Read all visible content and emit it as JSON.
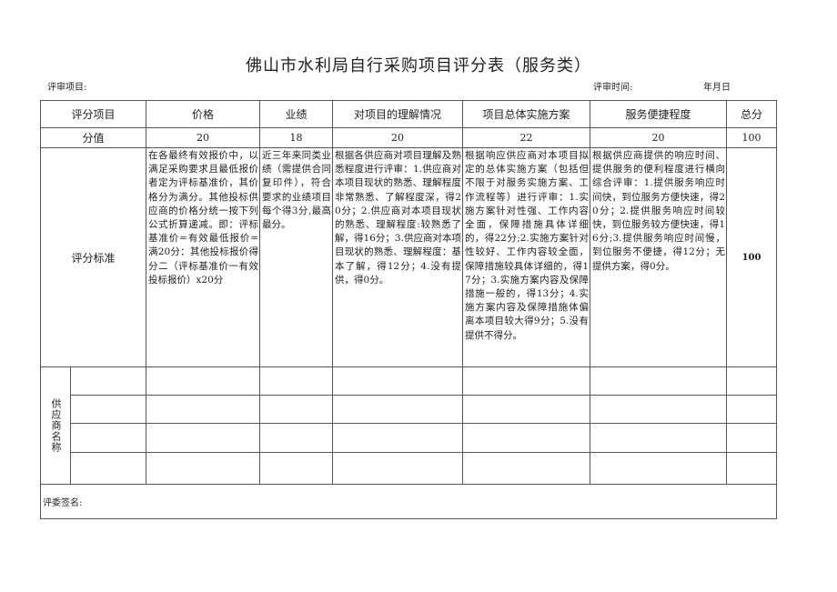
{
  "title": "佛山市水利局自行采购项目评分表（服务类）",
  "meta": {
    "project_label": "评审项目:",
    "time_label": "评审时间:",
    "date_label": "年月日"
  },
  "table": {
    "headers": [
      "评分项目",
      "价格",
      "业绩",
      "对项目的理解情况",
      "项目总体实施方案",
      "服务便捷程度",
      "总分"
    ],
    "score_label": "分值",
    "scores": [
      "20",
      "18",
      "20",
      "22",
      "20",
      "100"
    ],
    "criteria_label": "评分标准",
    "criteria": [
      "在各最终有效报价中，以满足采购要求且最低报价者定为评标基准价，其价格分为满分。其他投标供应商的价格分统一按下列公式折算递减。即：评标基准价=有效最低报价=满20分：其他投标报价得分二（评标基准价一有效投标报价）x20分",
      "近三年来同类业绩（需提供合同复印件），符合要求的业绩项目每个得3分,最高最分。",
      "根据各供应商对项目理解及熟悉程度进行评审：1.供应商对本项目现状的熟悉、理解程度非常熟悉、了解程度深，得20分；2.供应商对本项目现状的熟悉、理解程度:较熟悉了解，得16分；3.供应商对本项目现状的熟悉、理解程度：基本了解，得12分；4.没有提供，得0分。",
      "根据响应供应商对本项目拟定的总体实施方案（包括但不限于对服务实施方案、工作流程等）进行评审：1.实施方案针对性强、工作内容全面，保障措施具体详细的，得22分;2.实施方案针对性较好、工作内容较全面，保障措施较具体详细的，得17分；3.实施方案内容及保障措施一般的，得13分；4.实施方案内容及保障措施体偏离本项目较大得9分；5.没有提供不得分。",
      "根据供应商提供的响应时间、提供服务的便利程度进行横向综合评审：1.提供服务响应时间快，到位服务方便快速，得20分；2.提供服务响应时间较快，到位服务较方便快速，得16分;3.提供服务响应时间慢，到位服务不便捷，得12分；无提供方案，得0分。"
    ],
    "criteria_total": "100",
    "supplier_label": "供应商名称",
    "sign_label": "评委签名:"
  }
}
